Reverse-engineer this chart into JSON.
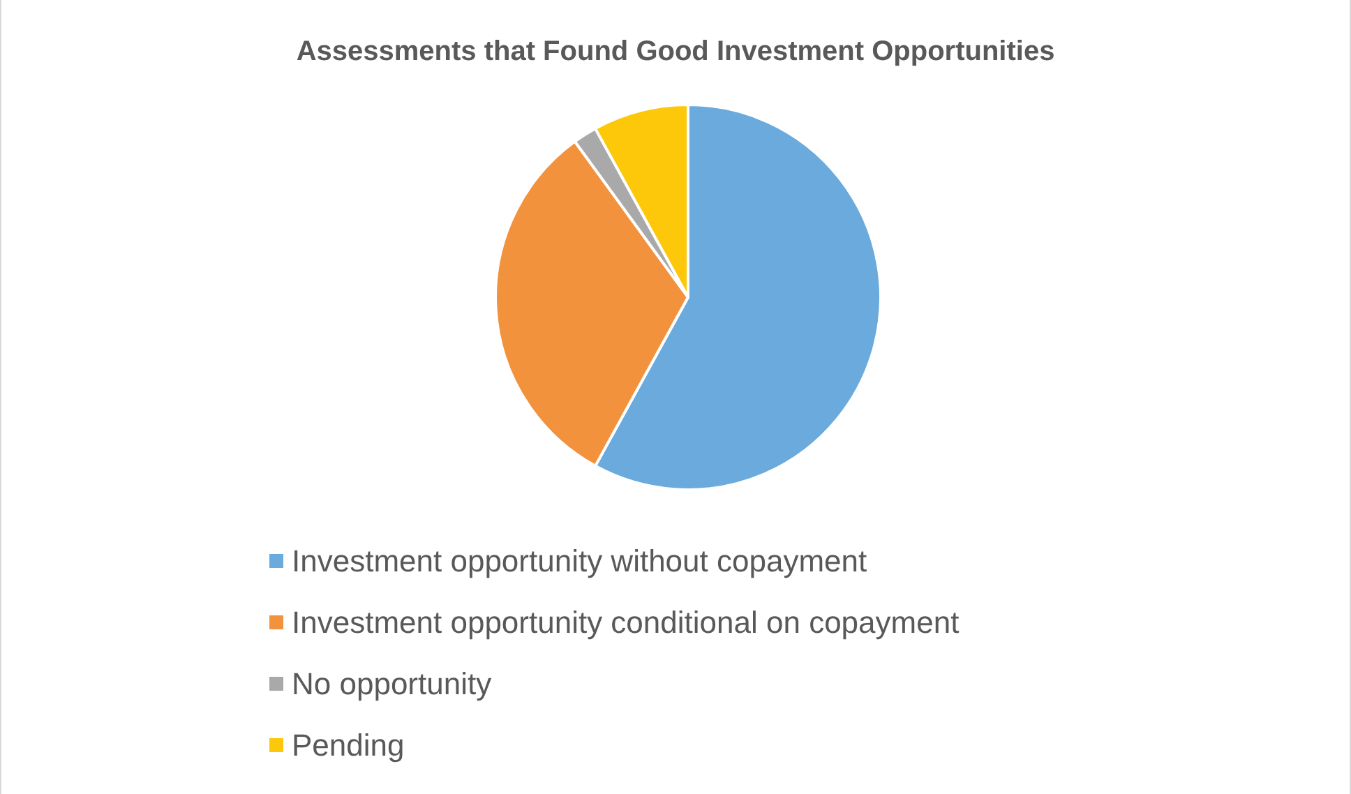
{
  "chart_data": {
    "type": "pie",
    "title": "Assessments that Found Good Investment Opportunities",
    "categories": [
      "Investment opportunity without copayment",
      "Investment opportunity conditional on copayment",
      "No opportunity",
      "Pending"
    ],
    "values": [
      58,
      32,
      2,
      8
    ],
    "colors": [
      "#6aaadc",
      "#f2923d",
      "#a9a9a9",
      "#fdc70a"
    ],
    "legend": "bottom"
  }
}
